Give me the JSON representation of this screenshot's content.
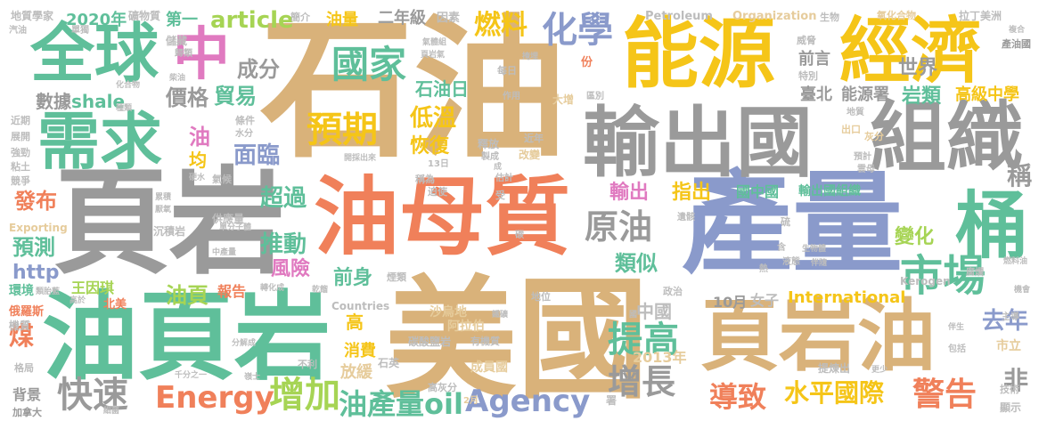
{
  "palette": {
    "tan": "#d9b27a",
    "gray": "#9a9a9a",
    "green": "#5fbf9a",
    "blue": "#8a9acb",
    "orange": "#f0805a",
    "pink": "#e07ac0",
    "yellow": "#f5c518",
    "lime": "#a6d454",
    "light_tan": "#e6cc9c",
    "light_gray": "#bdbdbd"
  },
  "words": [
    {
      "text": "石油",
      "color": "tan"
    },
    {
      "text": "頁岩",
      "color": "gray"
    },
    {
      "text": "美國",
      "color": "tan"
    },
    {
      "text": "油頁岩",
      "color": "green"
    },
    {
      "text": "產量",
      "color": "blue"
    },
    {
      "text": "油母質",
      "color": "orange"
    },
    {
      "text": "輸出國",
      "color": "gray"
    },
    {
      "text": "組織",
      "color": "gray"
    },
    {
      "text": "能源",
      "color": "yellow"
    },
    {
      "text": "經濟",
      "color": "yellow"
    },
    {
      "text": "全球",
      "color": "green"
    },
    {
      "text": "需求",
      "color": "green"
    },
    {
      "text": "頁岩油",
      "color": "tan"
    },
    {
      "text": "桶",
      "color": "green"
    },
    {
      "text": "市場",
      "color": "green"
    },
    {
      "text": "中",
      "color": "pink"
    },
    {
      "text": "國家",
      "color": "green"
    },
    {
      "text": "預期",
      "color": "yellow"
    },
    {
      "text": "化學",
      "color": "blue"
    },
    {
      "text": "原油",
      "color": "gray"
    },
    {
      "text": "提高",
      "color": "green"
    },
    {
      "text": "增長",
      "color": "gray"
    },
    {
      "text": "水平國際",
      "color": "yellow"
    },
    {
      "text": "導致",
      "color": "orange"
    },
    {
      "text": "警告",
      "color": "orange"
    },
    {
      "text": "Energy",
      "color": "orange"
    },
    {
      "text": "Agency",
      "color": "blue"
    },
    {
      "text": "快速",
      "color": "gray"
    },
    {
      "text": "增加",
      "color": "lime"
    },
    {
      "text": "油產量oil",
      "color": "green"
    },
    {
      "text": "燃料",
      "color": "yellow"
    },
    {
      "text": "石油日",
      "color": "green"
    },
    {
      "text": "成分",
      "color": "gray"
    },
    {
      "text": "價格",
      "color": "gray"
    },
    {
      "text": "貿易",
      "color": "green"
    },
    {
      "text": "數據",
      "color": "gray"
    },
    {
      "text": "shale",
      "color": "green"
    },
    {
      "text": "發布",
      "color": "orange"
    },
    {
      "text": "預測",
      "color": "green"
    },
    {
      "text": "http",
      "color": "blue"
    },
    {
      "text": "煤",
      "color": "orange"
    },
    {
      "text": "推動",
      "color": "green"
    },
    {
      "text": "超過",
      "color": "green"
    },
    {
      "text": "風險",
      "color": "pink"
    },
    {
      "text": "前身",
      "color": "green"
    },
    {
      "text": "面臨",
      "color": "blue"
    },
    {
      "text": "低溫",
      "color": "yellow"
    },
    {
      "text": "恢復",
      "color": "yellow"
    },
    {
      "text": "油頁",
      "color": "lime"
    },
    {
      "text": "世界",
      "color": "gray"
    },
    {
      "text": "岩類",
      "color": "green"
    },
    {
      "text": "高級中學",
      "color": "yellow"
    },
    {
      "text": "能源署",
      "color": "gray"
    },
    {
      "text": "變化",
      "color": "lime"
    },
    {
      "text": "去年",
      "color": "blue"
    },
    {
      "text": "非",
      "color": "gray"
    },
    {
      "text": "稱",
      "color": "gray"
    },
    {
      "text": "article",
      "color": "lime"
    },
    {
      "text": "2020年",
      "color": "green"
    },
    {
      "text": "第一",
      "color": "green"
    },
    {
      "text": "油量",
      "color": "yellow"
    },
    {
      "text": "二年級",
      "color": "gray"
    },
    {
      "text": "輸出",
      "color": "pink"
    },
    {
      "text": "指出",
      "color": "yellow"
    },
    {
      "text": "國中國",
      "color": "green"
    },
    {
      "text": "輸出國組織",
      "color": "green"
    },
    {
      "text": "類似",
      "color": "green"
    },
    {
      "text": "中國",
      "color": "light_gray"
    },
    {
      "text": "10月",
      "color": "gray"
    },
    {
      "text": "女子",
      "color": "light_gray"
    },
    {
      "text": "International",
      "color": "yellow"
    },
    {
      "text": "2013年",
      "color": "light_tan"
    },
    {
      "text": "消費",
      "color": "yellow"
    },
    {
      "text": "放緩",
      "color": "light_tan"
    },
    {
      "text": "高",
      "color": "yellow"
    },
    {
      "text": "王因琪",
      "color": "lime"
    },
    {
      "text": "報告",
      "color": "orange"
    },
    {
      "text": "前言",
      "color": "gray"
    },
    {
      "text": "臺北",
      "color": "gray"
    },
    {
      "text": "Petroleum",
      "color": "light_gray"
    },
    {
      "text": "Organization",
      "color": "light_tan"
    },
    {
      "text": "油",
      "color": "pink"
    },
    {
      "text": "均",
      "color": "yellow"
    },
    {
      "text": "地質學家",
      "color": "light_gray"
    },
    {
      "text": "礦物質",
      "color": "light_gray"
    },
    {
      "text": "Exporting",
      "color": "light_tan"
    },
    {
      "text": "Countries",
      "color": "light_gray"
    },
    {
      "text": "Kerogen",
      "color": "light_gray"
    },
    {
      "text": "環境",
      "color": "green"
    },
    {
      "text": "背景",
      "color": "gray"
    },
    {
      "text": "加拿大",
      "color": "gray"
    },
    {
      "text": "簡介",
      "color": "light_gray"
    },
    {
      "text": "儲藏",
      "color": "light_gray"
    },
    {
      "text": "因素",
      "color": "light_gray"
    },
    {
      "text": "生物",
      "color": "light_gray"
    },
    {
      "text": "氧化合物",
      "color": "light_tan"
    },
    {
      "text": "拉丁美洲",
      "color": "light_gray"
    },
    {
      "text": "產油國",
      "color": "gray"
    },
    {
      "text": "沙烏地",
      "color": "light_tan"
    },
    {
      "text": "阿拉伯",
      "color": "light_tan"
    },
    {
      "text": "成員國",
      "color": "light_tan"
    },
    {
      "text": "石英",
      "color": "light_gray"
    },
    {
      "text": "碳酸鹽岩",
      "color": "light_gray"
    },
    {
      "text": "有機質",
      "color": "light_gray"
    },
    {
      "text": "高灰分",
      "color": "light_gray"
    },
    {
      "text": "提煉出",
      "color": "light_gray"
    },
    {
      "text": "俄羅斯",
      "color": "orange"
    },
    {
      "text": "機質",
      "color": "light_gray"
    },
    {
      "text": "北美",
      "color": "orange"
    },
    {
      "text": "供應量",
      "color": "light_gray"
    },
    {
      "text": "沉積岩",
      "color": "light_gray"
    },
    {
      "text": "地位",
      "color": "light_gray"
    },
    {
      "text": "政治",
      "color": "light_gray"
    },
    {
      "text": "技術",
      "color": "light_gray"
    },
    {
      "text": "顯示",
      "color": "light_gray"
    },
    {
      "text": "市立",
      "color": "light_tan"
    },
    {
      "text": "近年",
      "color": "light_gray"
    },
    {
      "text": "改變",
      "color": "light_tan"
    },
    {
      "text": "釋放",
      "color": "light_gray"
    },
    {
      "text": "大增",
      "color": "light_tan"
    },
    {
      "text": "作用",
      "color": "light_gray"
    },
    {
      "text": "每日",
      "color": "light_gray"
    },
    {
      "text": "近期",
      "color": "light_gray"
    },
    {
      "text": "展開",
      "color": "light_gray"
    },
    {
      "text": "強勁",
      "color": "light_gray"
    },
    {
      "text": "粘土",
      "color": "light_gray"
    },
    {
      "text": "競爭",
      "color": "light_gray"
    },
    {
      "text": "格局",
      "color": "light_gray"
    },
    {
      "text": "不利",
      "color": "light_gray"
    },
    {
      "text": "汽油",
      "color": "light_gray"
    },
    {
      "text": "單獨",
      "color": "light_gray"
    },
    {
      "text": "歸類",
      "color": "light_gray"
    },
    {
      "text": "氣候",
      "color": "light_gray"
    },
    {
      "text": "條件",
      "color": "light_gray"
    },
    {
      "text": "水分",
      "color": "light_gray"
    },
    {
      "text": "主導",
      "color": "light_gray"
    },
    {
      "text": "稱為",
      "color": "light_gray"
    },
    {
      "text": "迫使",
      "color": "light_gray"
    },
    {
      "text": "估計",
      "color": "light_gray"
    },
    {
      "text": "13日",
      "color": "light_gray"
    },
    {
      "text": "開採出來",
      "color": "light_gray"
    },
    {
      "text": "製成",
      "color": "light_gray"
    },
    {
      "text": "份",
      "color": "orange"
    },
    {
      "text": "特別",
      "color": "light_gray"
    },
    {
      "text": "威脅",
      "color": "light_gray"
    },
    {
      "text": "區別",
      "color": "light_gray"
    },
    {
      "text": "出口",
      "color": "light_tan"
    },
    {
      "text": "灰分",
      "color": "light_tan"
    },
    {
      "text": "預計",
      "color": "light_gray"
    },
    {
      "text": "雲母",
      "color": "light_gray"
    },
    {
      "text": "地質",
      "color": "light_gray"
    },
    {
      "text": "碳",
      "color": "light_gray"
    },
    {
      "text": "硫",
      "color": "light_gray"
    },
    {
      "text": "液態",
      "color": "light_gray"
    },
    {
      "text": "生物體",
      "color": "light_gray"
    },
    {
      "text": "燃料油",
      "color": "light_gray"
    },
    {
      "text": "腐爛",
      "color": "light_gray"
    },
    {
      "text": "機會",
      "color": "light_gray"
    },
    {
      "text": "伴生",
      "color": "light_gray"
    },
    {
      "text": "包括",
      "color": "light_gray"
    },
    {
      "text": "更少",
      "color": "light_gray"
    },
    {
      "text": "熱",
      "color": "light_gray"
    },
    {
      "text": "含",
      "color": "light_gray"
    },
    {
      "text": "遺骸",
      "color": "light_gray"
    },
    {
      "text": "化合物",
      "color": "light_gray"
    },
    {
      "text": "種類",
      "color": "light_gray"
    },
    {
      "text": "轉化成",
      "color": "light_gray"
    },
    {
      "text": "乾餾",
      "color": "light_gray"
    },
    {
      "text": "煙類",
      "color": "light_gray"
    },
    {
      "text": "分解成",
      "color": "light_gray"
    },
    {
      "text": "千分之一",
      "color": "light_gray"
    },
    {
      "text": "嶺士",
      "color": "light_gray"
    },
    {
      "text": "細菌",
      "color": "light_gray"
    },
    {
      "text": "2月",
      "color": "light_tan"
    },
    {
      "text": "署",
      "color": "light_gray"
    },
    {
      "text": "受",
      "color": "light_gray"
    },
    {
      "text": "成",
      "color": "light_gray"
    },
    {
      "text": "高於",
      "color": "light_gray"
    },
    {
      "text": "類胎藍",
      "color": "light_gray"
    },
    {
      "text": "中產量",
      "color": "light_gray"
    },
    {
      "text": "單分子體",
      "color": "light_gray"
    },
    {
      "text": "厭氧",
      "color": "light_gray"
    },
    {
      "text": "累積",
      "color": "light_gray"
    },
    {
      "text": "掩埋",
      "color": "light_gray"
    },
    {
      "text": "頁岩氣",
      "color": "light_gray"
    },
    {
      "text": "氣體組",
      "color": "light_gray"
    },
    {
      "text": "柴油",
      "color": "light_gray"
    },
    {
      "text": "硬水",
      "color": "light_gray"
    },
    {
      "text": "鐵礦",
      "color": "light_gray"
    },
    {
      "text": "國",
      "color": "light_gray"
    },
    {
      "text": "伴隨",
      "color": "light_gray"
    },
    {
      "text": "複合",
      "color": "light_gray"
    }
  ]
}
